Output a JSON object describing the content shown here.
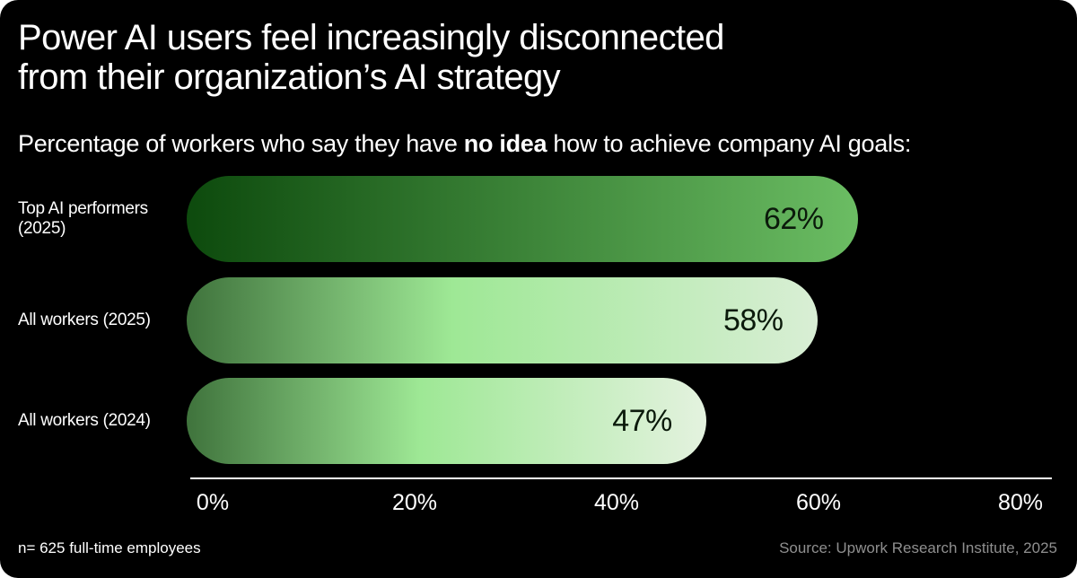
{
  "title_lines": [
    "Power AI users feel increasingly disconnected",
    "from their organization’s AI strategy"
  ],
  "subtitle": {
    "before": "Percentage of workers who say they have ",
    "emphasis": "no idea",
    "after": " how to achieve company AI goals:"
  },
  "footnote": "n= 625 full-time employees",
  "source": "Source: Upwork Research Institute, 2025",
  "colors": {
    "background": "#000000",
    "bar1_gradient": [
      "#0d4a0d",
      "#6bbd63"
    ],
    "bar2_gradient": [
      "#3f733c",
      "#9ee895",
      "#d9eed5"
    ],
    "bar3_gradient": [
      "#3f733c",
      "#9ee895",
      "#e4f2df"
    ]
  },
  "chart_data": {
    "type": "bar",
    "orientation": "horizontal",
    "categories": [
      "Top AI performers (2025)",
      "All workers (2025)",
      "All workers (2024)"
    ],
    "category_lines": [
      [
        "Top AI performers",
        "(2025)"
      ],
      [
        "All workers (2025)"
      ],
      [
        "All workers (2024)"
      ]
    ],
    "values": [
      62,
      58,
      47
    ],
    "value_labels": [
      "62%",
      "58%",
      "47%"
    ],
    "xlim": [
      0,
      80
    ],
    "xticks": [
      0,
      20,
      40,
      60,
      80
    ],
    "xtick_labels": [
      "0%",
      "20%",
      "40%",
      "60%",
      "80%"
    ],
    "grid": false,
    "legend": "none"
  }
}
